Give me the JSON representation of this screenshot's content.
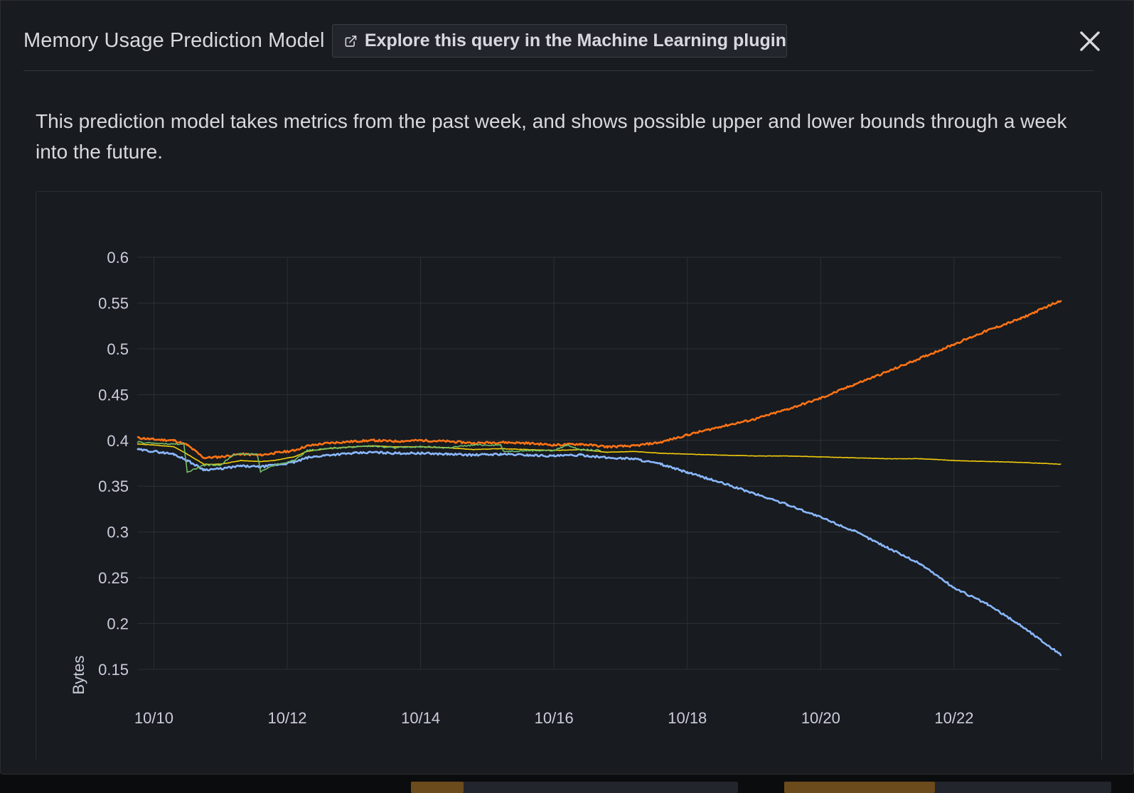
{
  "modal": {
    "title": "Memory Usage Prediction Model",
    "explore_label": "Explore this query in the Machine Learning plugin",
    "description": "This prediction model takes metrics from the past week, and shows possible upper and lower bounds through a week into the future.",
    "icons": {
      "explore": "external-link-icon",
      "close": "close-icon"
    }
  },
  "colors": {
    "upper": "#ff7316",
    "lower": "#8ab8ff",
    "predicted": "#f2cc0c",
    "actual": "#73bf69",
    "grid": "#2c3036",
    "background": "#181b1f"
  },
  "chart_data": {
    "type": "line",
    "title": "",
    "xlabel": "",
    "ylabel": "Bytes",
    "ylim": [
      0.15,
      0.6
    ],
    "yticks": [
      0.6,
      0.55,
      0.5,
      0.45,
      0.4,
      0.35,
      0.3,
      0.25,
      0.2,
      0.15
    ],
    "ytick_labels": [
      "0.6",
      "0.55",
      "0.5",
      "0.45",
      "0.4",
      "0.35",
      "0.3",
      "0.25",
      "0.2",
      "0.15"
    ],
    "xticks": [
      "10/10",
      "10/12",
      "10/14",
      "10/16",
      "10/18",
      "10/20",
      "10/22"
    ],
    "xlim_days": [
      9.75,
      23.6
    ],
    "grid": true,
    "series": [
      {
        "key": "upper",
        "x": [
          9.75,
          10.0,
          10.3,
          10.5,
          10.75,
          11.0,
          11.3,
          11.6,
          11.8,
          12.1,
          12.3,
          12.6,
          13.0,
          13.3,
          13.6,
          14.0,
          14.4,
          14.8,
          15.2,
          15.6,
          16.0,
          16.4,
          16.8,
          17.2,
          17.6,
          18.0,
          18.5,
          19.0,
          19.5,
          20.0,
          20.5,
          21.0,
          21.5,
          22.0,
          22.5,
          23.0,
          23.6
        ],
        "values": [
          0.403,
          0.401,
          0.4,
          0.395,
          0.381,
          0.382,
          0.385,
          0.384,
          0.386,
          0.389,
          0.394,
          0.397,
          0.399,
          0.4,
          0.399,
          0.4,
          0.399,
          0.397,
          0.398,
          0.397,
          0.395,
          0.396,
          0.393,
          0.394,
          0.398,
          0.406,
          0.415,
          0.423,
          0.434,
          0.446,
          0.461,
          0.475,
          0.49,
          0.505,
          0.52,
          0.533,
          0.553
        ]
      },
      {
        "key": "lower",
        "x": [
          9.75,
          10.0,
          10.3,
          10.5,
          10.75,
          11.0,
          11.3,
          11.6,
          11.8,
          12.1,
          12.3,
          12.6,
          13.0,
          13.3,
          13.6,
          14.0,
          14.4,
          14.8,
          15.2,
          15.6,
          16.0,
          16.4,
          16.8,
          17.2,
          17.6,
          18.0,
          18.5,
          19.0,
          19.5,
          20.0,
          20.5,
          21.0,
          21.5,
          22.0,
          22.5,
          23.0,
          23.6
        ],
        "values": [
          0.39,
          0.388,
          0.385,
          0.378,
          0.368,
          0.369,
          0.372,
          0.371,
          0.373,
          0.376,
          0.381,
          0.384,
          0.386,
          0.387,
          0.386,
          0.386,
          0.385,
          0.384,
          0.385,
          0.384,
          0.383,
          0.384,
          0.381,
          0.38,
          0.374,
          0.365,
          0.354,
          0.342,
          0.33,
          0.316,
          0.301,
          0.283,
          0.265,
          0.239,
          0.221,
          0.198,
          0.166
        ]
      },
      {
        "key": "predicted",
        "x": [
          9.75,
          10.0,
          10.3,
          10.5,
          10.75,
          11.0,
          11.3,
          11.6,
          11.8,
          12.1,
          12.3,
          12.6,
          13.0,
          13.3,
          13.6,
          14.0,
          14.4,
          14.8,
          15.2,
          15.6,
          16.0,
          16.4,
          16.8,
          17.2,
          17.6,
          18.0,
          18.5,
          19.0,
          19.5,
          20.0,
          20.5,
          21.0,
          21.5,
          22.0,
          22.5,
          23.0,
          23.6
        ],
        "values": [
          0.396,
          0.395,
          0.393,
          0.385,
          0.374,
          0.374,
          0.378,
          0.377,
          0.378,
          0.382,
          0.388,
          0.391,
          0.393,
          0.394,
          0.393,
          0.393,
          0.392,
          0.39,
          0.391,
          0.39,
          0.389,
          0.39,
          0.387,
          0.388,
          0.386,
          0.385,
          0.384,
          0.383,
          0.383,
          0.382,
          0.381,
          0.38,
          0.38,
          0.378,
          0.377,
          0.376,
          0.374
        ]
      },
      {
        "key": "actual",
        "x": [
          9.75,
          10.0,
          10.2,
          10.45,
          10.5,
          10.75,
          11.0,
          11.2,
          11.55,
          11.6,
          11.8,
          12.1,
          12.3,
          12.6,
          13.0,
          13.3,
          13.6,
          14.0,
          14.4,
          14.8,
          15.2,
          15.25,
          15.6,
          16.0,
          16.2,
          16.4,
          16.7
        ],
        "values": [
          0.398,
          0.397,
          0.396,
          0.396,
          0.365,
          0.373,
          0.373,
          0.385,
          0.385,
          0.366,
          0.373,
          0.378,
          0.389,
          0.391,
          0.393,
          0.394,
          0.392,
          0.393,
          0.392,
          0.395,
          0.395,
          0.388,
          0.389,
          0.389,
          0.395,
          0.39,
          0.389
        ]
      }
    ]
  }
}
